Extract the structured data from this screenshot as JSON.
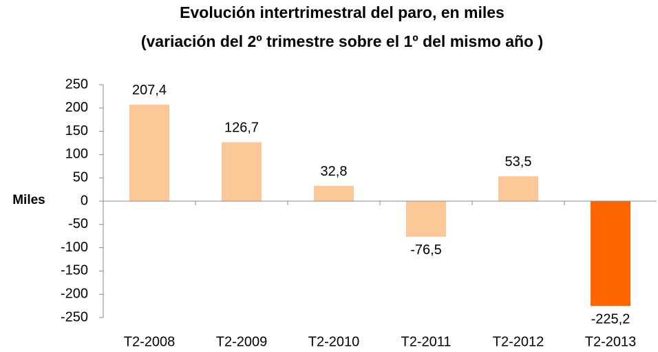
{
  "chart_data": {
    "type": "bar",
    "title": "Evolución intertrimestral del paro, en miles",
    "subtitle": "(variación del 2º trimestre  sobre el 1º del  mismo año )",
    "y_label": "Miles",
    "categories": [
      "T2-2008",
      "T2-2009",
      "T2-2010",
      "T2-2011",
      "T2-2012",
      "T2-2013"
    ],
    "values": [
      207.4,
      126.7,
      32.8,
      -76.5,
      53.5,
      -225.2
    ],
    "value_labels": [
      "207,4",
      "126,7",
      "32,8",
      "-76,5",
      "53,5",
      "-225,2"
    ],
    "colors": [
      "#fdc897",
      "#fdc897",
      "#fdc897",
      "#fdc897",
      "#fdc897",
      "#ff6600"
    ],
    "ylim": [
      -250,
      250
    ],
    "yticks": [
      -250,
      -200,
      -150,
      -100,
      -50,
      0,
      50,
      100,
      150,
      200,
      250
    ]
  }
}
